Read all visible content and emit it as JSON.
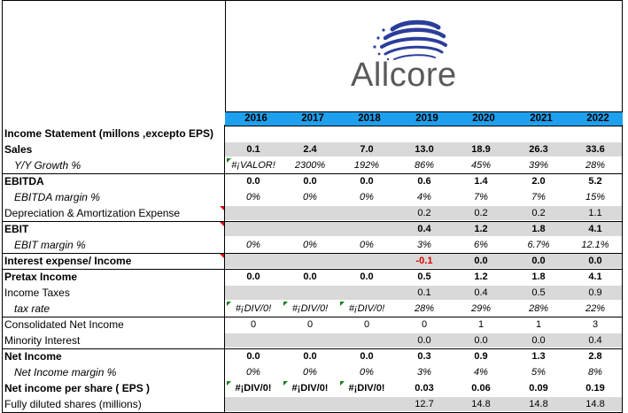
{
  "logo": {
    "name": "Allcore"
  },
  "years": [
    "2016",
    "2017",
    "2018",
    "2019",
    "2020",
    "2021",
    "2022"
  ],
  "title": "Income Statement (millons ,excepto EPS)",
  "rows": [
    {
      "label": "Sales",
      "style": "bold",
      "values": [
        "0.1",
        "2.4",
        "7.0",
        "13.0",
        "18.9",
        "26.3",
        "33.6"
      ]
    },
    {
      "label": "Y/Y Growth %",
      "style": "italic",
      "values": [
        "#¡VALOR!",
        "2300%",
        "192%",
        "86%",
        "45%",
        "39%",
        "28%"
      ]
    },
    {
      "label": "EBITDA",
      "style": "bold",
      "values": [
        "0.0",
        "0.0",
        "0.0",
        "0.6",
        "1.4",
        "2.0",
        "5.2"
      ]
    },
    {
      "label": "EBITDA margin %",
      "style": "italic",
      "values": [
        "0%",
        "0%",
        "0%",
        "4%",
        "7%",
        "7%",
        "15%"
      ]
    },
    {
      "label": "Depreciation & Amortization Expense",
      "style": "normal",
      "values": [
        "",
        "",
        "",
        "0.2",
        "0.2",
        "0.2",
        "1.1"
      ]
    },
    {
      "label": "EBIT",
      "style": "bold",
      "values": [
        "",
        "",
        "",
        "0.4",
        "1.2",
        "1.8",
        "4.1"
      ]
    },
    {
      "label": "EBIT margin %",
      "style": "italic",
      "values": [
        "0%",
        "0%",
        "0%",
        "3%",
        "6%",
        "6.7%",
        "12.1%"
      ]
    },
    {
      "label": "Interest expense/ Income",
      "style": "bold",
      "values": [
        "",
        "",
        "",
        "-0.1",
        "0.0",
        "0.0",
        "0.0"
      ]
    },
    {
      "label": "Pretax Income",
      "style": "bold",
      "values": [
        "0.0",
        "0.0",
        "0.0",
        "0.5",
        "1.2",
        "1.8",
        "4.1"
      ]
    },
    {
      "label": "Income Taxes",
      "style": "normal",
      "values": [
        "",
        "",
        "",
        "0.1",
        "0.4",
        "0.5",
        "0.9"
      ]
    },
    {
      "label": "tax rate",
      "style": "italic",
      "values": [
        "#¡DIV/0!",
        "#¡DIV/0!",
        "#¡DIV/0!",
        "28%",
        "29%",
        "28%",
        "22%"
      ]
    },
    {
      "label": "Consolidated Net Income",
      "style": "normal",
      "values": [
        "0",
        "0",
        "0",
        "0",
        "1",
        "1",
        "3"
      ]
    },
    {
      "label": "Minority Interest",
      "style": "normal",
      "values": [
        "",
        "",
        "",
        "0.0",
        "0.0",
        "0.0",
        "0.4"
      ]
    },
    {
      "label": "Net Income",
      "style": "bold",
      "values": [
        "0.0",
        "0.0",
        "0.0",
        "0.3",
        "0.9",
        "1.3",
        "2.8"
      ]
    },
    {
      "label": "Net Income margin %",
      "style": "italic",
      "values": [
        "0%",
        "0%",
        "0%",
        "3%",
        "4%",
        "5%",
        "8%"
      ]
    },
    {
      "label": "Net income per share ( EPS )",
      "style": "bold",
      "values": [
        "#¡DIV/0!",
        "#¡DIV/0!",
        "#¡DIV/0!",
        "0.03",
        "0.06",
        "0.09",
        "0.19"
      ]
    },
    {
      "label": "Fully diluted shares  (millions)",
      "style": "normal",
      "values": [
        "",
        "",
        "",
        "12.7",
        "14.8",
        "14.8",
        "14.8"
      ]
    }
  ],
  "colors": {
    "year_header": "#1ea0ee",
    "shade": "#d9d9d9",
    "negative": "#e00000",
    "logo_text": "#5a5a5a",
    "logo_blue": "#2b3e9c"
  }
}
